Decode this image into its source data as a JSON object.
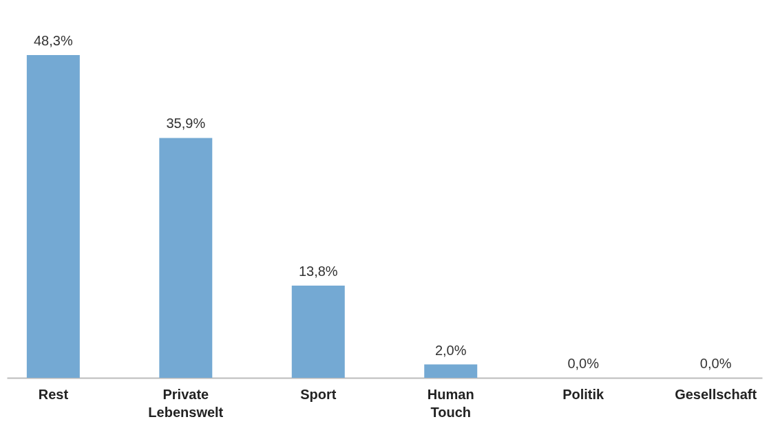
{
  "chart_data": {
    "type": "bar",
    "categories": [
      "Rest",
      "Private Lebenswelt",
      "Sport",
      "Human Touch",
      "Politik",
      "Gesellschaft"
    ],
    "values": [
      48.3,
      35.9,
      13.8,
      2.0,
      0.0,
      0.0
    ],
    "value_labels": [
      "48,3%",
      "35,9%",
      "13,8%",
      "2,0%",
      "0,0%",
      "0,0%"
    ],
    "color": "#74a9d3"
  }
}
